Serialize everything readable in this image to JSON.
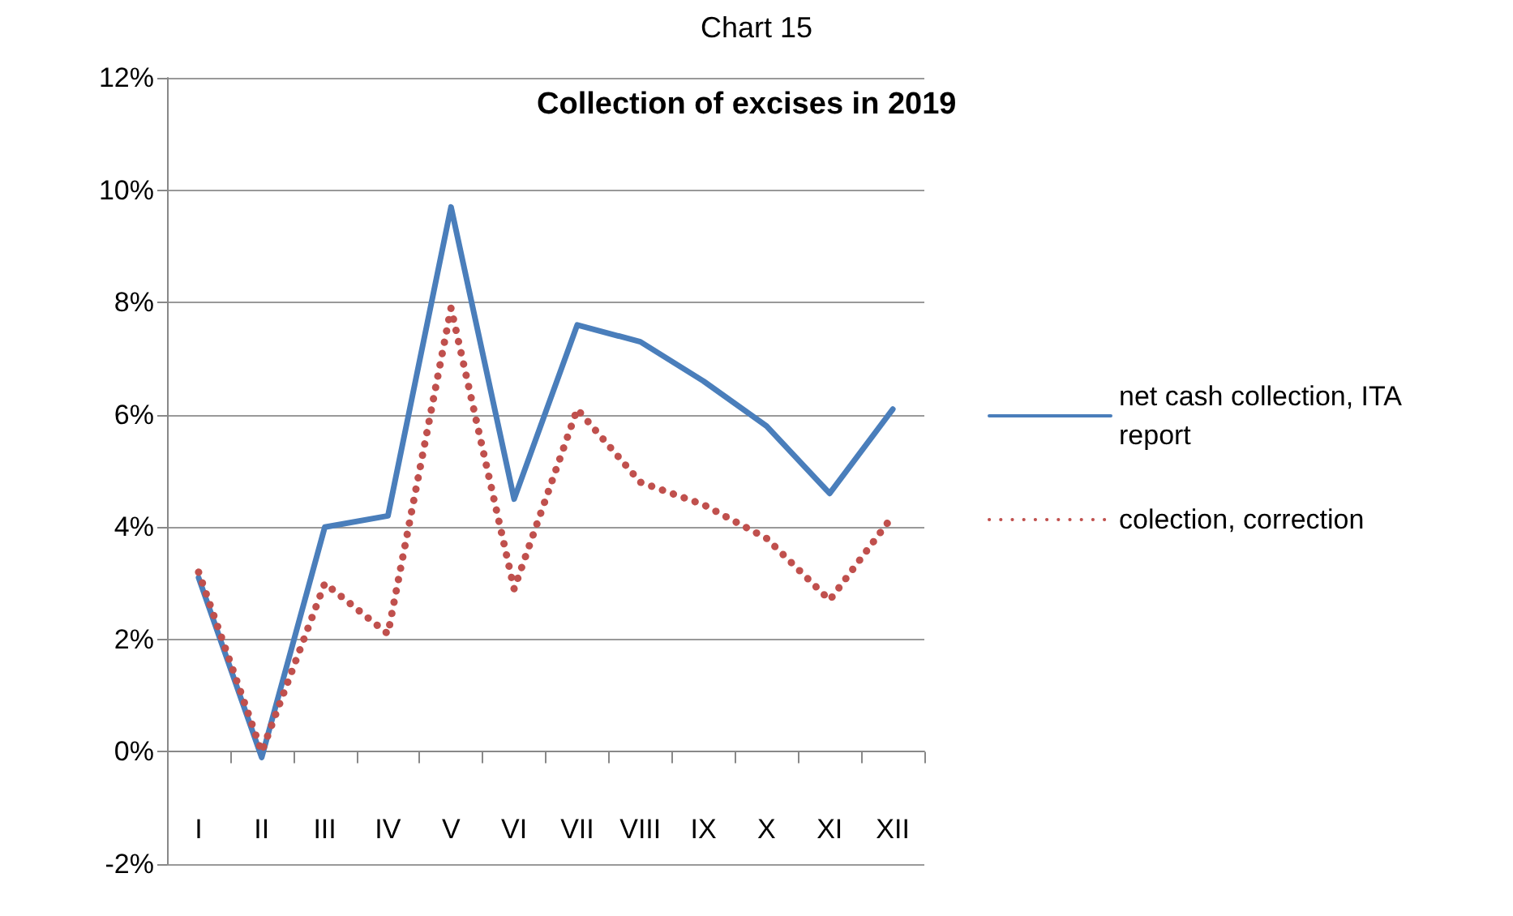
{
  "chart_data": {
    "type": "line",
    "title": "Collection of excises in 2019",
    "annotations": [
      "Chart 15"
    ],
    "categories": [
      "I",
      "II",
      "III",
      "IV",
      "V",
      "VI",
      "VII",
      "VIII",
      "IX",
      "X",
      "XI",
      "XII"
    ],
    "series": [
      {
        "name": "net cash collection, ITA report",
        "color": "#4a7ebb",
        "line_style": "solid",
        "values": [
          3.1,
          -0.1,
          4.0,
          4.2,
          9.7,
          4.5,
          7.6,
          7.3,
          6.6,
          5.8,
          4.6,
          6.1
        ]
      },
      {
        "name": "colection, correction",
        "color": "#c0504d",
        "line_style": "dotted",
        "values": [
          3.2,
          0.0,
          3.0,
          2.1,
          7.9,
          2.9,
          6.1,
          4.8,
          4.4,
          3.8,
          2.7,
          4.2
        ]
      }
    ],
    "ylim": [
      -2,
      12
    ],
    "yticks": [
      {
        "value": -2,
        "label": "-2%"
      },
      {
        "value": 0,
        "label": "0%"
      },
      {
        "value": 2,
        "label": "2%"
      },
      {
        "value": 4,
        "label": "4%"
      },
      {
        "value": 6,
        "label": "6%"
      },
      {
        "value": 8,
        "label": "8%"
      },
      {
        "value": 10,
        "label": "10%"
      },
      {
        "value": 12,
        "label": "12%"
      }
    ],
    "grid": "y",
    "legend": "right",
    "marker": "none"
  }
}
